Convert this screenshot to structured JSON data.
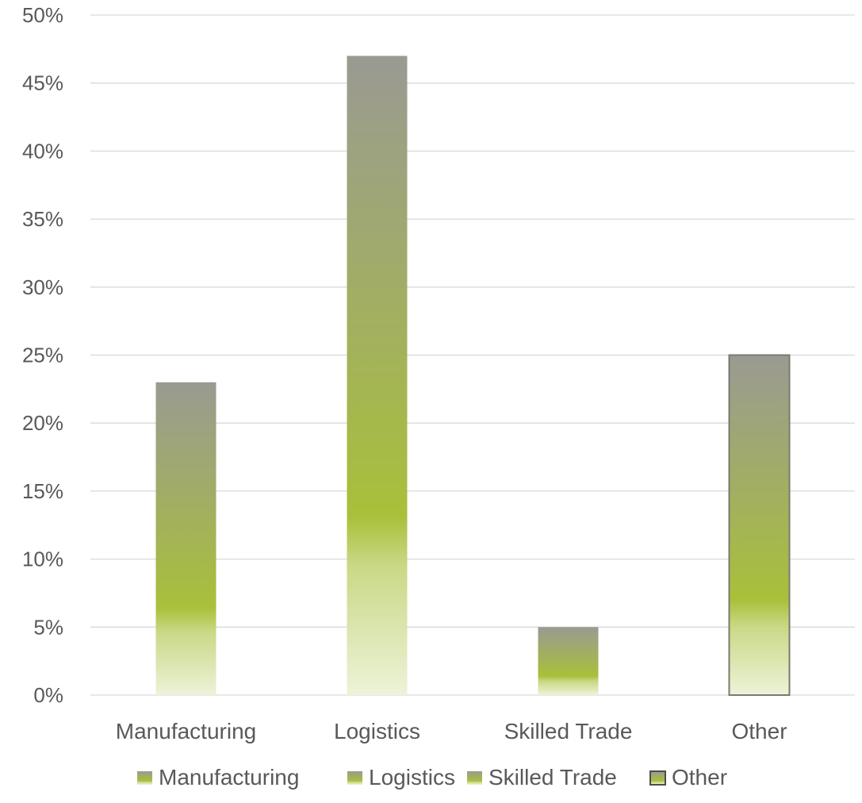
{
  "chart_data": {
    "type": "bar",
    "categories": [
      "Manufacturing",
      "Logistics",
      "Skilled Trade",
      "Other"
    ],
    "values": [
      23,
      47,
      5,
      25
    ],
    "value_format": "percent",
    "ylim": [
      0,
      50
    ],
    "ytick_step": 5,
    "yticks": [
      "0%",
      "5%",
      "10%",
      "15%",
      "20%",
      "25%",
      "30%",
      "35%",
      "40%",
      "45%",
      "50%"
    ],
    "title": "",
    "xlabel": "",
    "ylabel": "",
    "grid": true,
    "legend_position": "bottom",
    "legend": [
      "Manufacturing",
      "Logistics",
      "Skilled Trade",
      "Other"
    ],
    "colors": {
      "bar_top": "#9a9a92",
      "bar_mid": "#a8c03a",
      "bar_bottom": "#edf3d8",
      "other_border": "#7a7a72",
      "grid": "#d9d9d9",
      "text": "#595959"
    }
  }
}
